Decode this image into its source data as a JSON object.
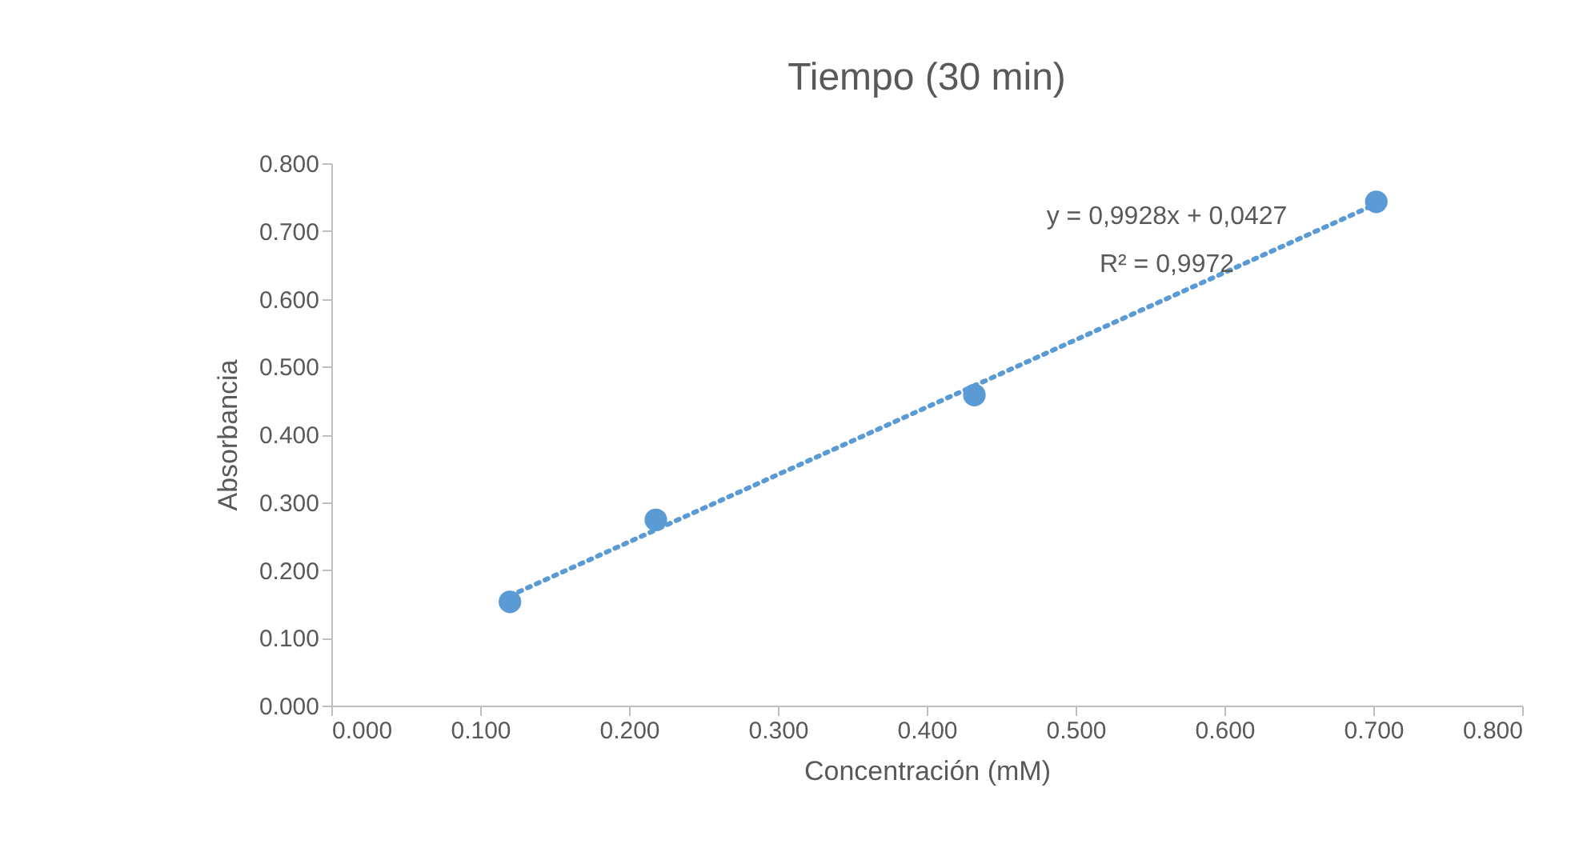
{
  "chart_data": {
    "type": "scatter",
    "title": "Tiempo (30 min)",
    "xlabel": "Concentración (mM)",
    "ylabel": "Absorbancia",
    "series": [
      {
        "type": "scatter",
        "color": "#5b9bd5",
        "x": [
          0.12,
          0.218,
          0.432,
          0.702
        ],
        "values": [
          0.153,
          0.274,
          0.458,
          0.743
        ],
        "marker": "circle"
      },
      {
        "type": "line",
        "color": "#5b9bd5",
        "x": [
          0.12,
          0.702
        ],
        "values": [
          0.162,
          0.74
        ],
        "line_style": "dotted",
        "marker": "none"
      }
    ],
    "xlim": [
      0,
      0.8
    ],
    "ylim": [
      0,
      0.8
    ],
    "xticks": [
      {
        "value": 0,
        "label": "0.000"
      },
      {
        "value": 0.1,
        "label": "0.100"
      },
      {
        "value": 0.2,
        "label": "0.200"
      },
      {
        "value": 0.3,
        "label": "0.300"
      },
      {
        "value": 0.4,
        "label": "0.400"
      },
      {
        "value": 0.5,
        "label": "0.500"
      },
      {
        "value": 0.6,
        "label": "0.600"
      },
      {
        "value": 0.7,
        "label": "0.700"
      },
      {
        "value": 0.8,
        "label": "0.800"
      }
    ],
    "yticks": [
      {
        "value": 0,
        "label": "0.000"
      },
      {
        "value": 0.1,
        "label": "0.100"
      },
      {
        "value": 0.2,
        "label": "0.200"
      },
      {
        "value": 0.3,
        "label": "0.300"
      },
      {
        "value": 0.4,
        "label": "0.400"
      },
      {
        "value": 0.5,
        "label": "0.500"
      },
      {
        "value": 0.6,
        "label": "0.600"
      },
      {
        "value": 0.7,
        "label": "0.700"
      },
      {
        "value": 0.8,
        "label": "0.800"
      }
    ],
    "annotations": [
      "y = 0,9928x + 0,0427",
      "R² = 0,9972"
    ],
    "grid": false
  }
}
